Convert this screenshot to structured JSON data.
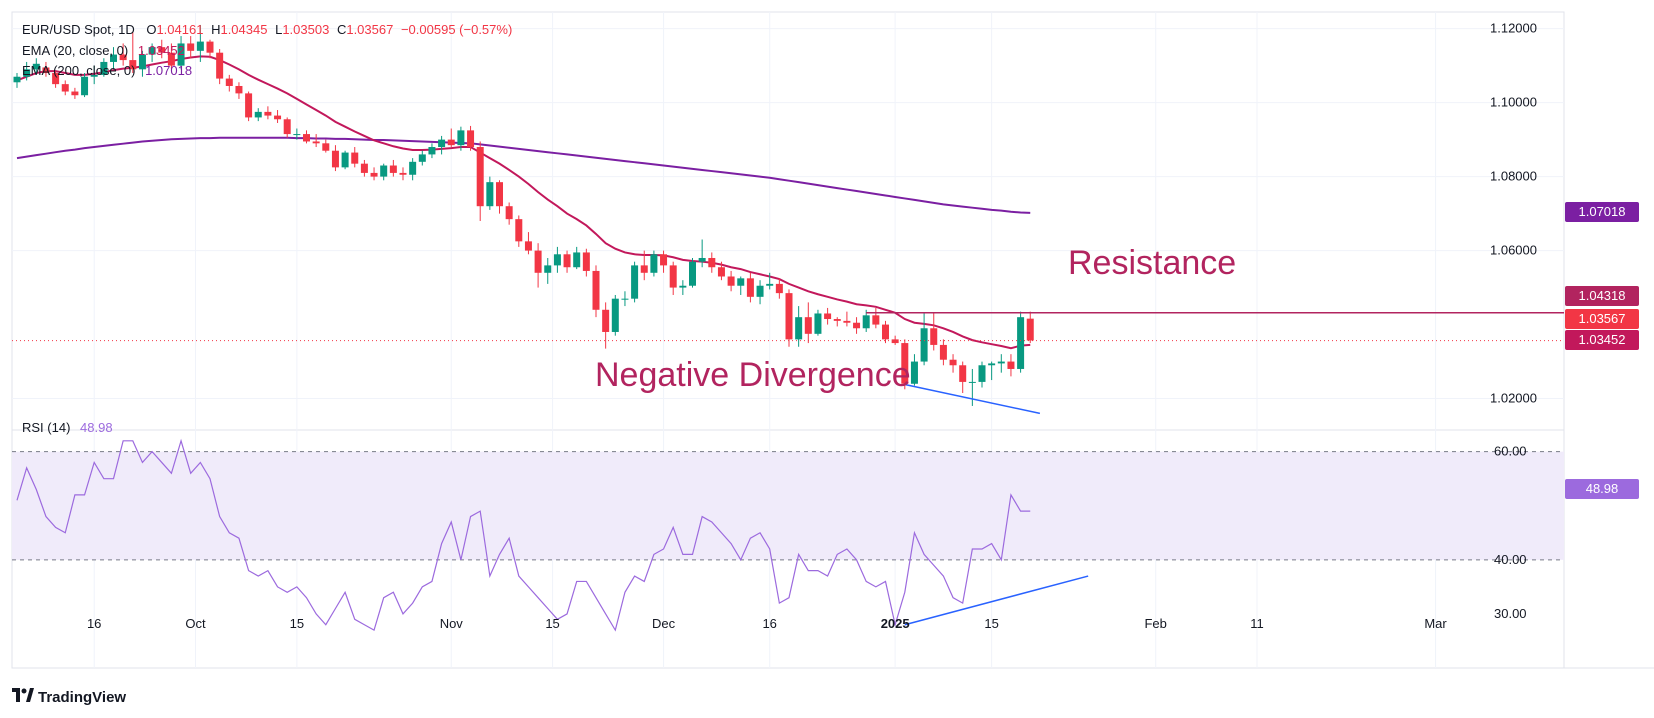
{
  "header": {
    "symbol": "EUR/USD Spot, 1D",
    "ohlc": {
      "o_label": "O",
      "o": "1.04161",
      "h_label": "H",
      "h": "1.04345",
      "l_label": "L",
      "l": "1.03503",
      "c_label": "C",
      "c": "1.03567",
      "change": "−0.00595 (−0.57%)"
    },
    "ema20": {
      "label": "EMA (20, close, 0)",
      "value": "1.03452"
    },
    "ema200": {
      "label": "EMA (200, close, 0)",
      "value": "1.07018"
    },
    "rsi": {
      "label": "RSI (14)",
      "value": "48.98"
    }
  },
  "price_tags": {
    "ema200": "1.07018",
    "resistance": "1.04318",
    "close": "1.03567",
    "ema20": "1.03452",
    "rsi": "48.98"
  },
  "annotations": {
    "resistance": "Resistance",
    "divergence": "Negative Divergence"
  },
  "branding": {
    "name": "TradingView"
  },
  "colors": {
    "up": "#089981",
    "down": "#f23645",
    "ema20": "#c2185b",
    "ema200": "#7b1fa2",
    "rsi_line": "#9c6ade",
    "rsi_band": "#f0ebfa",
    "trendline": "#2962ff",
    "annotation_text": "#b2245f"
  },
  "chart_data": {
    "type": "candlestick",
    "title": "EUR/USD Spot, 1D",
    "x_ticks": [
      "16",
      "Oct",
      "15",
      "Nov",
      "15",
      "Dec",
      "16",
      "2025",
      "15",
      "Feb",
      "11",
      "Mar"
    ],
    "y_ticks": [
      "1.12000",
      "1.10000",
      "1.08000",
      "1.06000",
      "1.02000"
    ],
    "y_range": [
      1.0115,
      1.1245
    ],
    "rsi_ticks": [
      "60.00",
      "40.00",
      "30.00"
    ],
    "rsi_range": [
      20,
      64
    ],
    "rsi_bands": [
      40,
      60
    ],
    "resistance_level": 1.04318,
    "last_close": 1.03567,
    "ohlc": [
      [
        1.1055,
        1.108,
        1.104,
        1.107
      ],
      [
        1.107,
        1.111,
        1.106,
        1.109
      ],
      [
        1.109,
        1.112,
        1.1075,
        1.1105
      ],
      [
        1.1095,
        1.111,
        1.107,
        1.108
      ],
      [
        1.108,
        1.1085,
        1.104,
        1.105
      ],
      [
        1.105,
        1.106,
        1.102,
        1.103
      ],
      [
        1.103,
        1.104,
        1.101,
        1.102
      ],
      [
        1.102,
        1.108,
        1.1015,
        1.107
      ],
      [
        1.107,
        1.11,
        1.105,
        1.1075
      ],
      [
        1.1075,
        1.112,
        1.107,
        1.111
      ],
      [
        1.111,
        1.115,
        1.109,
        1.113
      ],
      [
        1.113,
        1.116,
        1.11,
        1.1115
      ],
      [
        1.1115,
        1.119,
        1.108,
        1.109
      ],
      [
        1.109,
        1.114,
        1.107,
        1.113
      ],
      [
        1.113,
        1.116,
        1.111,
        1.115
      ],
      [
        1.115,
        1.117,
        1.112,
        1.1135
      ],
      [
        1.1135,
        1.116,
        1.109,
        1.11
      ],
      [
        1.11,
        1.118,
        1.109,
        1.116
      ],
      [
        1.116,
        1.118,
        1.112,
        1.114
      ],
      [
        1.114,
        1.121,
        1.111,
        1.1165
      ],
      [
        1.1165,
        1.117,
        1.112,
        1.1135
      ],
      [
        1.1135,
        1.1145,
        1.105,
        1.1065
      ],
      [
        1.1065,
        1.1075,
        1.103,
        1.1045
      ],
      [
        1.1045,
        1.1055,
        1.101,
        1.1025
      ],
      [
        1.1025,
        1.103,
        1.095,
        1.096
      ],
      [
        1.096,
        1.0985,
        1.095,
        1.0975
      ],
      [
        1.0975,
        1.099,
        1.0955,
        1.0965
      ],
      [
        1.0965,
        1.098,
        1.0945,
        1.0955
      ],
      [
        1.0955,
        1.096,
        1.0905,
        1.0915
      ],
      [
        1.0915,
        1.093,
        1.09,
        1.0915
      ],
      [
        1.0915,
        1.0925,
        1.089,
        1.0895
      ],
      [
        1.0895,
        1.0915,
        1.088,
        1.089
      ],
      [
        1.089,
        1.09,
        1.0865,
        1.087
      ],
      [
        1.087,
        1.0885,
        1.0815,
        1.0825
      ],
      [
        1.0825,
        1.087,
        1.082,
        1.0865
      ],
      [
        1.0865,
        1.088,
        1.0825,
        1.0835
      ],
      [
        1.0835,
        1.0845,
        1.08,
        1.081
      ],
      [
        1.081,
        1.0825,
        1.079,
        1.08
      ],
      [
        1.08,
        1.0835,
        1.079,
        1.083
      ],
      [
        1.083,
        1.0845,
        1.08,
        1.081
      ],
      [
        1.081,
        1.0825,
        1.079,
        1.0805
      ],
      [
        1.0805,
        1.085,
        1.079,
        1.084
      ],
      [
        1.084,
        1.087,
        1.083,
        1.086
      ],
      [
        1.086,
        1.089,
        1.085,
        1.088
      ],
      [
        1.088,
        1.091,
        1.086,
        1.09
      ],
      [
        1.09,
        1.093,
        1.088,
        1.0885
      ],
      [
        1.0885,
        1.0935,
        1.087,
        1.0925
      ],
      [
        1.0925,
        1.0937,
        1.087,
        1.088
      ],
      [
        1.088,
        1.0895,
        1.068,
        1.072
      ],
      [
        1.072,
        1.08,
        1.071,
        1.0785
      ],
      [
        1.0785,
        1.079,
        1.07,
        1.072
      ],
      [
        1.072,
        1.073,
        1.067,
        1.0685
      ],
      [
        1.0685,
        1.0695,
        1.061,
        1.0625
      ],
      [
        1.0625,
        1.065,
        1.059,
        1.06
      ],
      [
        1.06,
        1.062,
        1.05,
        1.054
      ],
      [
        1.054,
        1.058,
        1.051,
        1.056
      ],
      [
        1.056,
        1.061,
        1.054,
        1.059
      ],
      [
        1.059,
        1.06,
        1.054,
        1.0555
      ],
      [
        1.0555,
        1.061,
        1.055,
        1.0595
      ],
      [
        1.0595,
        1.0605,
        1.053,
        1.0545
      ],
      [
        1.0545,
        1.056,
        1.042,
        1.044
      ],
      [
        1.044,
        1.046,
        1.0335,
        1.038
      ],
      [
        1.038,
        1.048,
        1.037,
        1.047
      ],
      [
        1.047,
        1.049,
        1.045,
        1.047
      ],
      [
        1.047,
        1.057,
        1.046,
        1.056
      ],
      [
        1.056,
        1.06,
        1.052,
        1.054
      ],
      [
        1.054,
        1.06,
        1.053,
        1.059
      ],
      [
        1.059,
        1.06,
        1.054,
        1.056
      ],
      [
        1.056,
        1.057,
        1.048,
        1.05
      ],
      [
        1.05,
        1.052,
        1.048,
        1.0505
      ],
      [
        1.0505,
        1.058,
        1.05,
        1.057
      ],
      [
        1.057,
        1.063,
        1.0555,
        1.058
      ],
      [
        1.058,
        1.0595,
        1.054,
        1.0555
      ],
      [
        1.0555,
        1.057,
        1.052,
        1.053
      ],
      [
        1.053,
        1.0545,
        1.049,
        1.0505
      ],
      [
        1.0505,
        1.053,
        1.048,
        1.0525
      ],
      [
        1.0525,
        1.054,
        1.046,
        1.0475
      ],
      [
        1.0475,
        1.052,
        1.0455,
        1.0505
      ],
      [
        1.0505,
        1.054,
        1.0495,
        1.051
      ],
      [
        1.051,
        1.0525,
        1.047,
        1.0485
      ],
      [
        1.0485,
        1.0495,
        1.034,
        1.036
      ],
      [
        1.036,
        1.045,
        1.034,
        1.042
      ],
      [
        1.042,
        1.046,
        1.035,
        1.0375
      ],
      [
        1.0375,
        1.044,
        1.037,
        1.043
      ],
      [
        1.043,
        1.0445,
        1.04,
        1.0415
      ],
      [
        1.0415,
        1.042,
        1.0395,
        1.041
      ],
      [
        1.041,
        1.0435,
        1.0395,
        1.0405
      ],
      [
        1.0405,
        1.042,
        1.0375,
        1.039
      ],
      [
        1.039,
        1.044,
        1.038,
        1.0425
      ],
      [
        1.0425,
        1.0445,
        1.039,
        1.04
      ],
      [
        1.04,
        1.041,
        1.035,
        1.036
      ],
      [
        1.036,
        1.037,
        1.0345,
        1.035
      ],
      [
        1.035,
        1.036,
        1.0225,
        1.024
      ],
      [
        1.024,
        1.032,
        1.0235,
        1.03
      ],
      [
        1.03,
        1.043,
        1.029,
        1.039
      ],
      [
        1.039,
        1.043,
        1.033,
        1.0345
      ],
      [
        1.0345,
        1.036,
        1.029,
        1.0305
      ],
      [
        1.0305,
        1.032,
        1.027,
        1.029
      ],
      [
        1.029,
        1.03,
        1.0215,
        1.0245
      ],
      [
        1.0245,
        1.028,
        1.018,
        1.0245
      ],
      [
        1.0245,
        1.03,
        1.023,
        1.029
      ],
      [
        1.029,
        1.03,
        1.025,
        1.0295
      ],
      [
        1.0295,
        1.032,
        1.027,
        1.03
      ],
      [
        1.03,
        1.032,
        1.026,
        1.028
      ],
      [
        1.028,
        1.0435,
        1.027,
        1.042
      ],
      [
        1.0416,
        1.0435,
        1.035,
        1.0357
      ]
    ],
    "ema20": [
      1.106,
      1.107,
      1.108,
      1.1085,
      1.1085,
      1.108,
      1.1075,
      1.1075,
      1.1078,
      1.1082,
      1.1088,
      1.1092,
      1.1094,
      1.1098,
      1.1103,
      1.1108,
      1.1112,
      1.1118,
      1.1122,
      1.1125,
      1.1124,
      1.1115,
      1.1103,
      1.109,
      1.1075,
      1.1062,
      1.105,
      1.1038,
      1.1025,
      1.101,
      1.0995,
      1.098,
      1.0965,
      1.0948,
      1.0935,
      1.0922,
      1.091,
      1.0898,
      1.089,
      1.0882,
      1.0876,
      1.0872,
      1.0872,
      1.0873,
      1.0875,
      1.0877,
      1.088,
      1.088,
      1.0865,
      1.085,
      1.0835,
      1.0818,
      1.08,
      1.078,
      1.0758,
      1.0738,
      1.072,
      1.07,
      1.0685,
      1.0668,
      1.0645,
      1.062,
      1.0605,
      1.0595,
      1.059,
      1.0588,
      1.0588,
      1.0587,
      1.0582,
      1.0575,
      1.0572,
      1.057,
      1.0567,
      1.0562,
      1.0555,
      1.055,
      1.0542,
      1.0536,
      1.053,
      1.0523,
      1.051,
      1.05,
      1.049,
      1.0482,
      1.0475,
      1.0468,
      1.0462,
      1.0455,
      1.0452,
      1.0448,
      1.044,
      1.0432,
      1.0415,
      1.0405,
      1.0402,
      1.0398,
      1.039,
      1.038,
      1.0368,
      1.0358,
      1.0352,
      1.0347,
      1.0342,
      1.0336,
      1.0343,
      1.0345
    ],
    "ema200": [
      1.085,
      1.0854,
      1.0858,
      1.0862,
      1.0866,
      1.087,
      1.0873,
      1.0877,
      1.088,
      1.0883,
      1.0886,
      1.0889,
      1.0892,
      1.0895,
      1.0897,
      1.0899,
      1.0901,
      1.0902,
      1.0903,
      1.0904,
      1.0904,
      1.0905,
      1.0905,
      1.0905,
      1.0905,
      1.0905,
      1.0905,
      1.0905,
      1.0905,
      1.0904,
      1.0904,
      1.0903,
      1.0903,
      1.0902,
      1.0902,
      1.0901,
      1.09,
      1.0899,
      1.0899,
      1.0898,
      1.0897,
      1.0896,
      1.0895,
      1.0894,
      1.0893,
      1.0892,
      1.0891,
      1.089,
      1.0887,
      1.0884,
      1.0881,
      1.0878,
      1.0875,
      1.0872,
      1.0869,
      1.0866,
      1.0863,
      1.086,
      1.0857,
      1.0854,
      1.0851,
      1.0848,
      1.0845,
      1.0842,
      1.0839,
      1.0836,
      1.0833,
      1.083,
      1.0827,
      1.0824,
      1.0821,
      1.0818,
      1.0815,
      1.0812,
      1.0809,
      1.0806,
      1.0803,
      1.08,
      1.0797,
      1.0793,
      1.0789,
      1.0785,
      1.0781,
      1.0777,
      1.0773,
      1.0769,
      1.0765,
      1.0761,
      1.0757,
      1.0753,
      1.0749,
      1.0745,
      1.0741,
      1.0737,
      1.0733,
      1.0729,
      1.0725,
      1.0722,
      1.0719,
      1.0716,
      1.0713,
      1.071,
      1.0708,
      1.0705,
      1.0703,
      1.0702
    ],
    "rsi": [
      51,
      57,
      53,
      48,
      46,
      45,
      52,
      52,
      58,
      55,
      55,
      62,
      62,
      58,
      60,
      58,
      56,
      62,
      56,
      58,
      55,
      48,
      45,
      44,
      38,
      37,
      38,
      35,
      34,
      35,
      33,
      30,
      28,
      31,
      34,
      29,
      28,
      27,
      33,
      34,
      30,
      32,
      35,
      36,
      43,
      47,
      40,
      48,
      49,
      37,
      41,
      44,
      37,
      35,
      33,
      31,
      29,
      30,
      36,
      36,
      33,
      30,
      27,
      34,
      37,
      36,
      41,
      42,
      46,
      41,
      41,
      48,
      47,
      45,
      43,
      40,
      44,
      45,
      42,
      32,
      33,
      41,
      38,
      38,
      37,
      41,
      42,
      40,
      36,
      35,
      36,
      28,
      34,
      45,
      41,
      39,
      37,
      33,
      32,
      42,
      42,
      43,
      40,
      52,
      49,
      49
    ],
    "divergence_price_line": [
      [
        1.0238,
        92
      ],
      [
        1.016,
        106
      ]
    ],
    "divergence_rsi_line": [
      [
        28,
        92
      ],
      [
        37,
        111
      ]
    ]
  }
}
